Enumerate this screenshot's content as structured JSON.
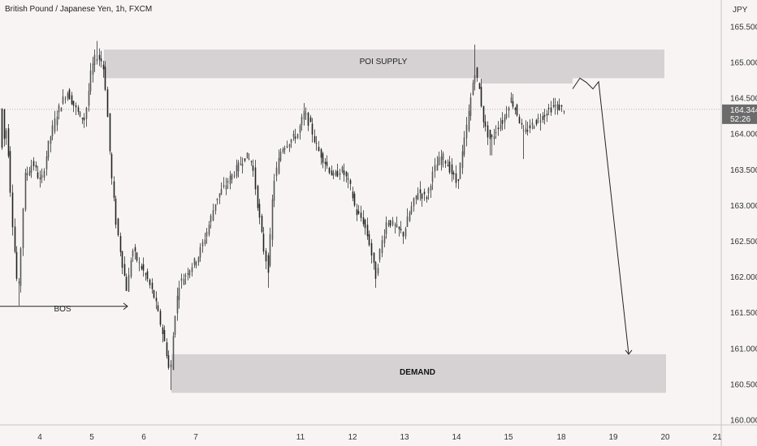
{
  "header": {
    "title": "British Pound / Japanese Yen, 1h, FXCM"
  },
  "chart_data": {
    "type": "candlestick",
    "title": "British Pound / Japanese Yen, 1h, FXCM",
    "currency_label": "JPY",
    "y_ticks": [
      "160.000",
      "160.500",
      "161.000",
      "161.500",
      "162.000",
      "162.500",
      "163.000",
      "163.500",
      "164.000",
      "164.500",
      "165.000",
      "165.500"
    ],
    "x_ticks": [
      "4",
      "5",
      "6",
      "7",
      "11",
      "12",
      "13",
      "14",
      "15",
      "18",
      "19",
      "20",
      "21"
    ],
    "ylim": [
      159.9,
      165.8
    ],
    "last_price": "164.344",
    "countdown": "52:26",
    "zones": [
      {
        "label": "POI SUPPLY",
        "from": 164.78,
        "to": 165.18
      },
      {
        "label": "DEMAND",
        "from": 160.38,
        "to": 160.92
      }
    ],
    "annotations": [
      {
        "label": "BOS",
        "price": 161.59
      }
    ],
    "path_key_points": [
      {
        "x": "18",
        "price": 164.63
      },
      {
        "x": "18",
        "price": 164.78
      },
      {
        "x": "19",
        "price": 164.72
      },
      {
        "x": "19",
        "price": 164.63
      },
      {
        "x": "19",
        "price": 164.73
      },
      {
        "x": "19",
        "price": 160.92
      }
    ],
    "colors": {
      "background": "#f8f4f4",
      "candle": "#333333",
      "zone": "#d6d2d3",
      "price_tag": "#6b6b6b",
      "current_line": "#999999"
    }
  }
}
